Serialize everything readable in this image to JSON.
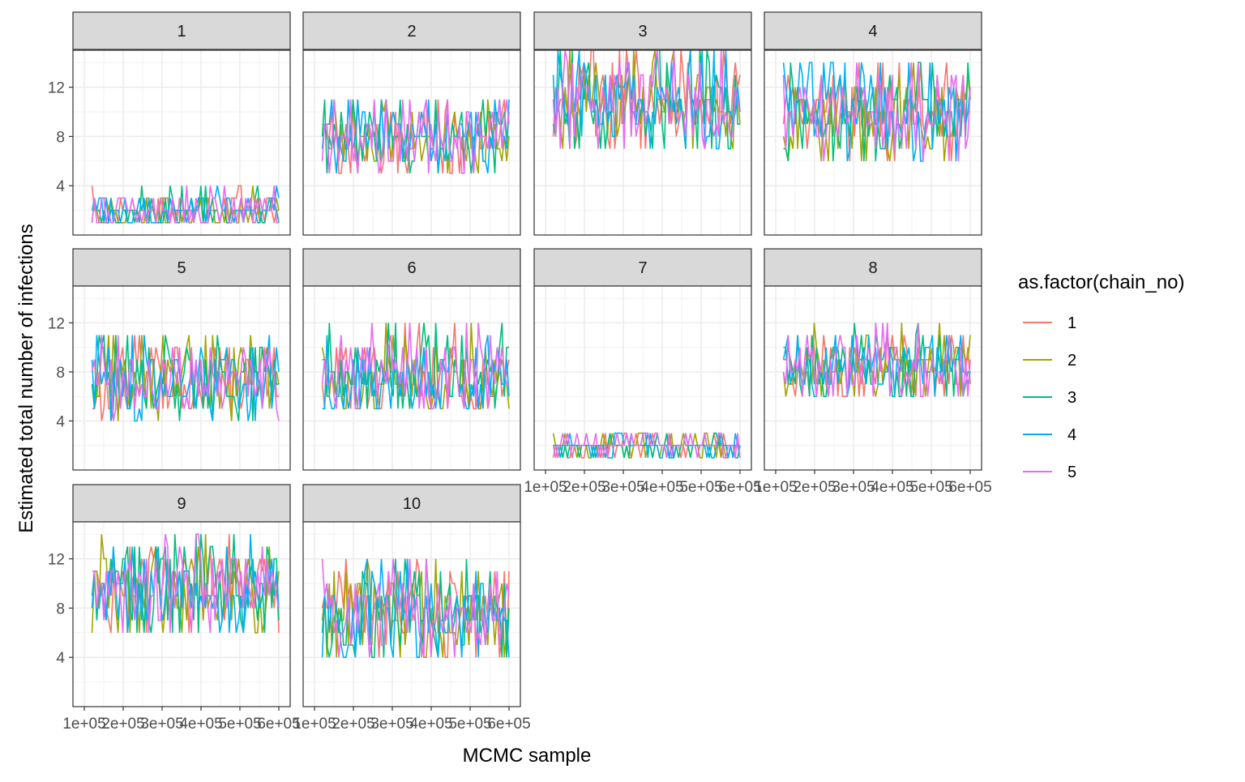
{
  "chart_data": {
    "type": "line",
    "layout": "facet-wrap",
    "xlabel": "MCMC sample",
    "ylabel": "Estimated total number of infections",
    "legend": {
      "title": "as.factor(chain_no)",
      "placement": "right",
      "entries": [
        "1",
        "2",
        "3",
        "4",
        "5"
      ]
    },
    "grid": true,
    "xlim": [
      100000,
      600000
    ],
    "ylim": [
      0,
      15
    ],
    "x_ticks": [
      100000,
      200000,
      300000,
      400000,
      500000,
      600000
    ],
    "x_tick_labels": [
      "1e+05",
      "2e+05",
      "3e+05",
      "4e+05",
      "5e+05",
      "6e+05"
    ],
    "y_ticks": [
      4,
      8,
      12
    ],
    "y_tick_labels": [
      "4",
      "8",
      "12"
    ],
    "series_colors": {
      "1": "#F8766D",
      "2": "#A3A500",
      "3": "#00BF7D",
      "4": "#00B0F6",
      "5": "#E76BF3"
    },
    "n_points_per_chain": 80,
    "panels": [
      {
        "label": "1",
        "mean": 2,
        "low": 1,
        "high": 4,
        "approx_levels": [
          1,
          2,
          3,
          4
        ]
      },
      {
        "label": "2",
        "mean": 8,
        "low": 5,
        "high": 11,
        "approx_levels": [
          5,
          6,
          7,
          8,
          9,
          10,
          11
        ]
      },
      {
        "label": "3",
        "mean": 11,
        "low": 7,
        "high": 15,
        "approx_levels": [
          7,
          8,
          9,
          10,
          11,
          12,
          13,
          14,
          15
        ]
      },
      {
        "label": "4",
        "mean": 10,
        "low": 6,
        "high": 14,
        "approx_levels": [
          6,
          7,
          8,
          9,
          10,
          11,
          12,
          13,
          14
        ]
      },
      {
        "label": "5",
        "mean": 7.5,
        "low": 4,
        "high": 11,
        "approx_levels": [
          4,
          5,
          6,
          7,
          8,
          9,
          10,
          11
        ]
      },
      {
        "label": "6",
        "mean": 7.5,
        "low": 5,
        "high": 12,
        "approx_levels": [
          5,
          6,
          7,
          8,
          9,
          10,
          11,
          12
        ]
      },
      {
        "label": "7",
        "mean": 2,
        "low": 1,
        "high": 3,
        "approx_levels": [
          1,
          2,
          3
        ]
      },
      {
        "label": "8",
        "mean": 8.5,
        "low": 6,
        "high": 12,
        "approx_levels": [
          6,
          7,
          8,
          9,
          10,
          11,
          12
        ]
      },
      {
        "label": "9",
        "mean": 9.5,
        "low": 6,
        "high": 14,
        "approx_levels": [
          6,
          7,
          8,
          9,
          10,
          11,
          12,
          13,
          14
        ]
      },
      {
        "label": "10",
        "mean": 7.5,
        "low": 4,
        "high": 12,
        "approx_levels": [
          4,
          5,
          6,
          7,
          8,
          9,
          10,
          11,
          12
        ]
      }
    ]
  }
}
